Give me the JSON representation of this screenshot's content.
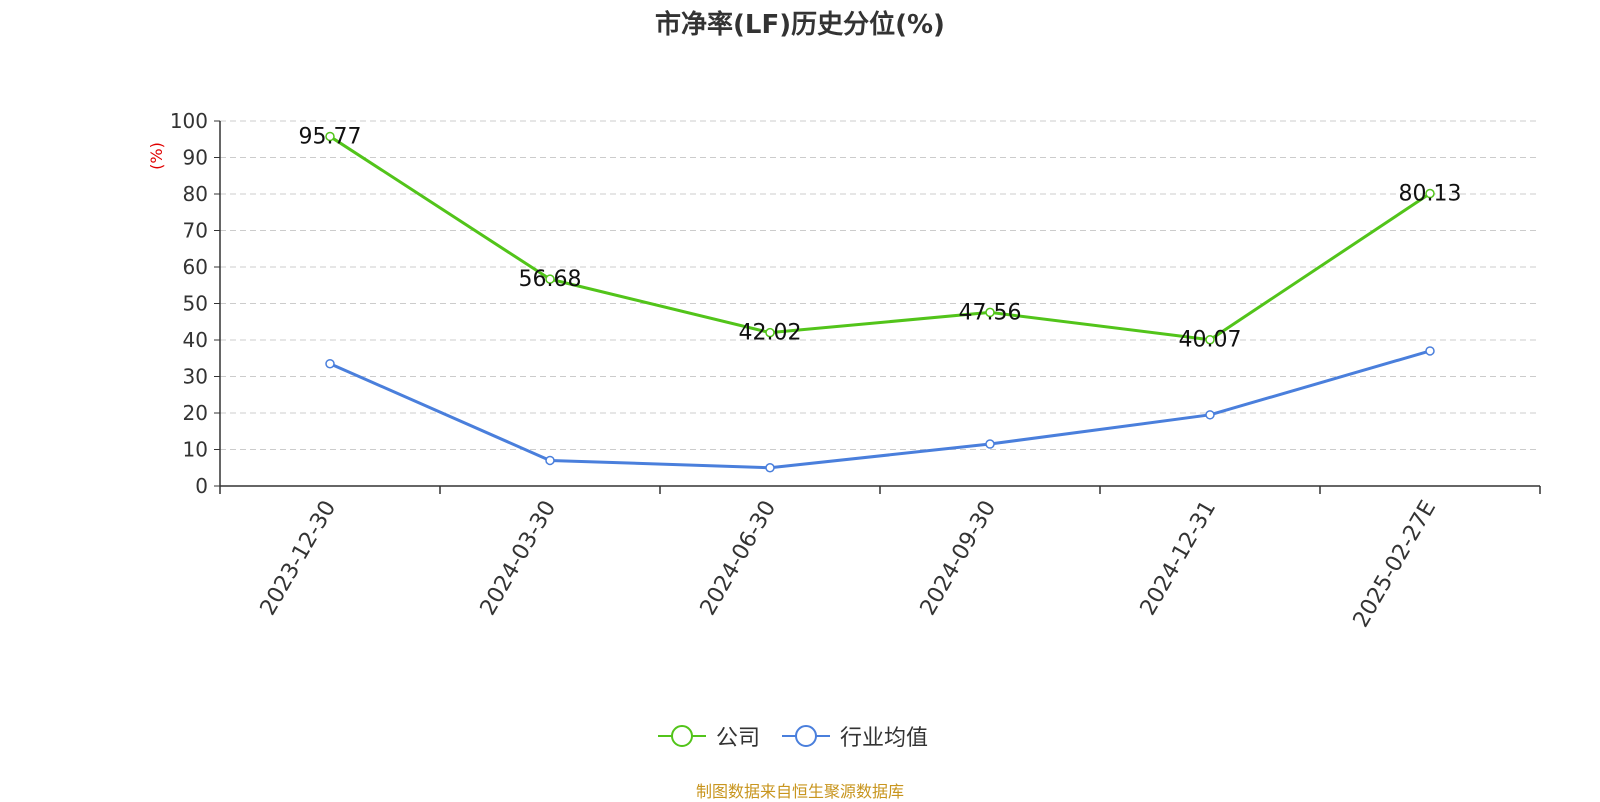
{
  "title": "市净率(LF)历史分位(%)",
  "source": "制图数据来自恒生聚源数据库",
  "colors": {
    "company": "#52c41a",
    "industry": "#4a7fdc",
    "ylabel": "#e00000",
    "source": "#c8951e"
  },
  "chart_data": {
    "type": "line",
    "title": "市净率(LF)历史分位(%)",
    "categories": [
      "2023-12-30",
      "2024-03-30",
      "2024-06-30",
      "2024-09-30",
      "2024-12-31",
      "2025-02-27E"
    ],
    "ylabel": "(%)",
    "ylim": [
      0,
      100
    ],
    "yticks": [
      0,
      10,
      20,
      30,
      40,
      50,
      60,
      70,
      80,
      90,
      100
    ],
    "grid": true,
    "legend_position": "bottom-center",
    "series": [
      {
        "name": "公司",
        "values": [
          95.77,
          56.68,
          42.02,
          47.56,
          40.07,
          80.13
        ],
        "labels": [
          "95.77",
          "56.68",
          "42.02",
          "47.56",
          "40.07",
          "80.13"
        ]
      },
      {
        "name": "行业均值",
        "values": [
          33.5,
          7.0,
          5.0,
          11.5,
          19.5,
          37.0
        ]
      }
    ]
  }
}
